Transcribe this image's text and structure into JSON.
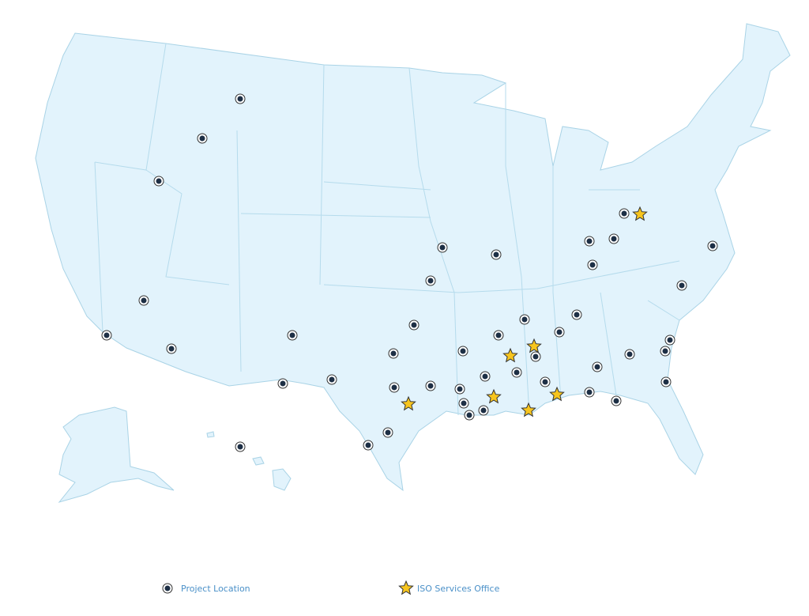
{
  "legend": {
    "items": [
      {
        "label": "Project Location"
      },
      {
        "label": "ISO Services Office"
      }
    ]
  }
}
